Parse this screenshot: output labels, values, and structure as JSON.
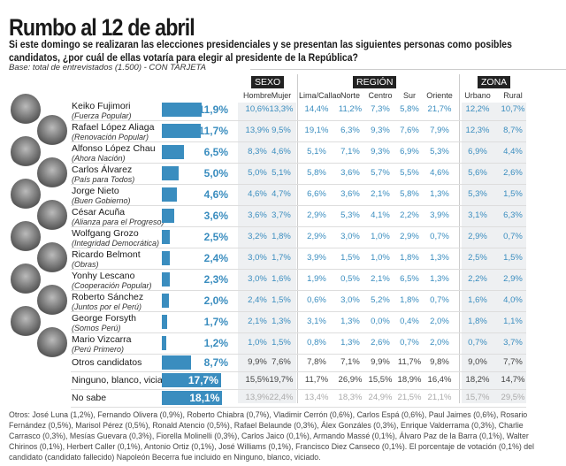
{
  "title": "Rumbo al 12 de abril",
  "question": "Si este domingo se realizaran las elecciones presidenciales y se presentan las siguientes personas como posibles candidatos, ¿por cuál de ellas votaría para elegir al presidente de la República?",
  "base": "Base: total de entrevistados (1.500) - CON TARJETA",
  "groups": {
    "sexo": "SEXO",
    "region": "REGIÓN",
    "zona": "ZONA"
  },
  "columns": [
    "Hombre",
    "Mujer",
    "Lima/Callao",
    "Norte",
    "Centro",
    "Sur",
    "Oriente",
    "Urbano",
    "Rural"
  ],
  "colors": {
    "bar": "#3a8dbf",
    "header": "#222222"
  },
  "chart_data": {
    "type": "bar",
    "title": "Rumbo al 12 de abril",
    "categories": [
      "Keiko Fujimori",
      "Rafael López Aliaga",
      "Alfonso López Chau",
      "Carlos Álvarez",
      "Jorge Nieto",
      "César Acuña",
      "Wolfgang Grozo",
      "Ricardo Belmont",
      "Yonhy Lescano",
      "Roberto Sánchez",
      "George Forsyth",
      "Mario Vizcarra",
      "Otros candidatos",
      "Ninguno, blanco, viciado",
      "No sabe"
    ],
    "rows": [
      {
        "name": "Keiko Fujimori",
        "party": "(Fuerza Popular)",
        "total": 11.9,
        "label": "11,9%",
        "cells": [
          "10,6%",
          "13,3%",
          "14,4%",
          "11,2%",
          "7,3%",
          "5,8%",
          "21,7%",
          "12,2%",
          "10,7%"
        ]
      },
      {
        "name": "Rafael López Aliaga",
        "party": "(Renovación Popular)",
        "total": 11.7,
        "label": "11,7%",
        "cells": [
          "13,9%",
          "9,5%",
          "19,1%",
          "6,3%",
          "9,3%",
          "7,6%",
          "7,9%",
          "12,3%",
          "8,7%"
        ]
      },
      {
        "name": "Alfonso López Chau",
        "party": "(Ahora Nación)",
        "total": 6.5,
        "label": "6,5%",
        "cells": [
          "8,3%",
          "4,6%",
          "5,1%",
          "7,1%",
          "9,3%",
          "6,9%",
          "5,3%",
          "6,9%",
          "4,4%"
        ]
      },
      {
        "name": "Carlos Álvarez",
        "party": "(País para Todos)",
        "total": 5.0,
        "label": "5,0%",
        "cells": [
          "5,0%",
          "5,1%",
          "5,8%",
          "3,6%",
          "5,7%",
          "5,5%",
          "4,6%",
          "5,6%",
          "2,6%"
        ]
      },
      {
        "name": "Jorge Nieto",
        "party": "(Buen Gobierno)",
        "total": 4.6,
        "label": "4,6%",
        "cells": [
          "4,6%",
          "4,7%",
          "6,6%",
          "3,6%",
          "2,1%",
          "5,8%",
          "1,3%",
          "5,3%",
          "1,5%"
        ]
      },
      {
        "name": "César Acuña",
        "party": "(Alianza para el Progreso)",
        "total": 3.6,
        "label": "3,6%",
        "cells": [
          "3,6%",
          "3,7%",
          "2,9%",
          "5,3%",
          "4,1%",
          "2,2%",
          "3,9%",
          "3,1%",
          "6,3%"
        ]
      },
      {
        "name": "Wolfgang Grozo",
        "party": "(Integridad Democrática)",
        "total": 2.5,
        "label": "2,5%",
        "cells": [
          "3,2%",
          "1,8%",
          "2,9%",
          "3,0%",
          "1,0%",
          "2,9%",
          "0,7%",
          "2,9%",
          "0,7%"
        ]
      },
      {
        "name": "Ricardo Belmont",
        "party": "(Obras)",
        "total": 2.4,
        "label": "2,4%",
        "cells": [
          "3,0%",
          "1,7%",
          "3,9%",
          "1,5%",
          "1,0%",
          "1,8%",
          "1,3%",
          "2,5%",
          "1,5%"
        ]
      },
      {
        "name": "Yonhy Lescano",
        "party": "(Cooperación Popular)",
        "total": 2.3,
        "label": "2,3%",
        "cells": [
          "3,0%",
          "1,6%",
          "1,9%",
          "0,5%",
          "2,1%",
          "6,5%",
          "1,3%",
          "2,2%",
          "2,9%"
        ]
      },
      {
        "name": "Roberto Sánchez",
        "party": "(Juntos por el Perú)",
        "total": 2.0,
        "label": "2,0%",
        "cells": [
          "2,4%",
          "1,5%",
          "0,6%",
          "3,0%",
          "5,2%",
          "1,8%",
          "0,7%",
          "1,6%",
          "4,0%"
        ]
      },
      {
        "name": "George Forsyth",
        "party": "(Somos Perú)",
        "total": 1.7,
        "label": "1,7%",
        "cells": [
          "2,1%",
          "1,3%",
          "3,1%",
          "1,3%",
          "0,0%",
          "0,4%",
          "2,0%",
          "1,8%",
          "1,1%"
        ]
      },
      {
        "name": "Mario Vizcarra",
        "party": "(Perú Primero)",
        "total": 1.2,
        "label": "1,2%",
        "cells": [
          "1,0%",
          "1,5%",
          "0,8%",
          "1,3%",
          "2,6%",
          "0,7%",
          "2,0%",
          "0,7%",
          "3,7%"
        ]
      },
      {
        "name": "Otros candidatos",
        "total": 8.7,
        "label": "8,7%",
        "cells": [
          "9,9%",
          "7,6%",
          "7,8%",
          "7,1%",
          "9,9%",
          "11,7%",
          "9,8%",
          "9,0%",
          "7,7%"
        ]
      },
      {
        "name": "Ninguno, blanco, viciado",
        "total": 17.7,
        "label": "17,7%",
        "cells": [
          "15,5%",
          "19,7%",
          "11,7%",
          "26,9%",
          "15,5%",
          "18,9%",
          "16,4%",
          "18,2%",
          "14,7%"
        ]
      },
      {
        "name": "No sabe",
        "total": 18.1,
        "label": "18,1%",
        "cells": [
          "13,9%",
          "22,4%",
          "13,4%",
          "18,3%",
          "24,9%",
          "21,5%",
          "21,1%",
          "15,7%",
          "29,5%"
        ]
      }
    ]
  },
  "footnote": "Otros: José Luna (1,2%), Fernando Olivera (0,9%), Roberto Chiabra (0,7%), Vladimir Cerrón (0,6%), Carlos Espá (0,6%), Paul Jaimes (0,6%), Rosario Fernández (0,5%), Marisol Pérez (0,5%), Ronald Atencio (0,5%), Rafael Belaunde (0,3%), Álex Gonzáles (0,3%), Enrique Valderrama (0,3%), Charlie Carrasco (0,3%), Mesías Guevara (0,3%), Fiorella Molinelli (0,3%), Carlos Jaico (0,1%), Armando Massé (0,1%), Álvaro Paz de la Barra (0,1%), Walter Chirinos (0,1%), Herbert Caller (0,1%), Antonio Ortiz (0,1%), José Williams (0,1%), Francisco Diez Canseco (0,1%). El porcentaje de votación (0,1%) del candidato (candidato fallecido) Napoleón Becerra fue incluido en Ninguno, blanco, viciado."
}
